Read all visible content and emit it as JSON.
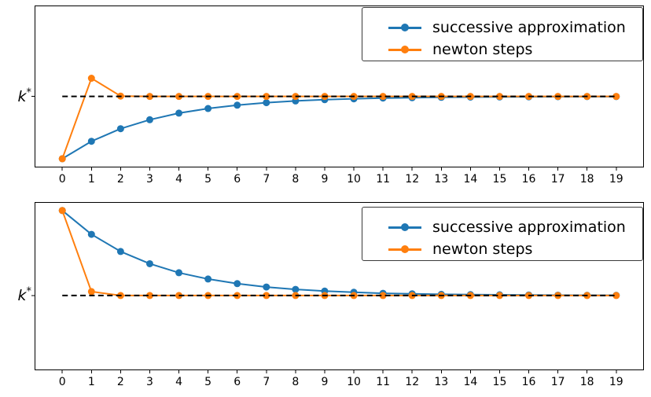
{
  "figure": {
    "background": "#ffffff",
    "title": ""
  },
  "colors": {
    "successive_approximation": "#1f77b4",
    "newton_steps": "#ff7f0e",
    "steady_state_line": "#000000",
    "axis": "#000000"
  },
  "ylabel": {
    "base": "k",
    "sup": "*"
  },
  "legend": {
    "position": "upper right",
    "items": [
      {
        "label": "successive approximation",
        "color": "#1f77b4"
      },
      {
        "label": "newton steps",
        "color": "#ff7f0e"
      }
    ]
  },
  "chart_data": [
    {
      "type": "line",
      "title": "",
      "xlabel": "",
      "ylabel": "k*",
      "x": [
        0,
        1,
        2,
        3,
        4,
        5,
        6,
        7,
        8,
        9,
        10,
        11,
        12,
        13,
        14,
        15,
        16,
        17,
        18,
        19
      ],
      "xticks": [
        0,
        1,
        2,
        3,
        4,
        5,
        6,
        7,
        8,
        9,
        10,
        11,
        12,
        13,
        14,
        15,
        16,
        17,
        18,
        19
      ],
      "ytick_labels": [
        "k*"
      ],
      "xlim": [
        -0.95,
        19.95
      ],
      "ylim": [
        0.43,
        1.73
      ],
      "grid": false,
      "legend_position": "upper right",
      "series": [
        {
          "name": "successive approximation",
          "color": "#1f77b4",
          "marker": "circle",
          "values": [
            0.5,
            0.64,
            0.741,
            0.813,
            0.866,
            0.903,
            0.93,
            0.95,
            0.964,
            0.974,
            0.981,
            0.987,
            0.99,
            0.993,
            0.995,
            0.996,
            0.997,
            0.998,
            0.999,
            0.999
          ]
        },
        {
          "name": "newton steps",
          "color": "#ff7f0e",
          "marker": "circle",
          "values": [
            0.5,
            1.146,
            1.003,
            1.0,
            1.0,
            1.0,
            1.0,
            1.0,
            1.0,
            1.0,
            1.0,
            1.0,
            1.0,
            1.0,
            1.0,
            1.0,
            1.0,
            1.0,
            1.0,
            1.0
          ]
        }
      ],
      "k_star_line": {
        "label": "k*",
        "value": 1.0,
        "style": "dashed",
        "color": "#000000",
        "x_start": 0,
        "x_end": 19
      }
    },
    {
      "type": "line",
      "title": "",
      "xlabel": "",
      "ylabel": "k*",
      "x": [
        0,
        1,
        2,
        3,
        4,
        5,
        6,
        7,
        8,
        9,
        10,
        11,
        12,
        13,
        14,
        15,
        16,
        17,
        18,
        19
      ],
      "xticks": [
        0,
        1,
        2,
        3,
        4,
        5,
        6,
        7,
        8,
        9,
        10,
        11,
        12,
        13,
        14,
        15,
        16,
        17,
        18,
        19
      ],
      "ytick_labels": [
        "k*"
      ],
      "xlim": [
        -0.95,
        19.95
      ],
      "ylim": [
        0.56,
        1.55
      ],
      "grid": false,
      "legend_position": "upper right",
      "series": [
        {
          "name": "successive approximation",
          "color": "#1f77b4",
          "marker": "circle",
          "values": [
            1.5,
            1.36,
            1.259,
            1.187,
            1.134,
            1.097,
            1.07,
            1.05,
            1.036,
            1.026,
            1.019,
            1.013,
            1.01,
            1.007,
            1.005,
            1.004,
            1.003,
            1.002,
            1.001,
            1.001
          ]
        },
        {
          "name": "newton steps",
          "color": "#ff7f0e",
          "marker": "circle",
          "values": [
            1.5,
            1.023,
            1.0,
            1.0,
            1.0,
            1.0,
            1.0,
            1.0,
            1.0,
            1.0,
            1.0,
            1.0,
            1.0,
            1.0,
            1.0,
            1.0,
            1.0,
            1.0,
            1.0,
            1.0
          ]
        }
      ],
      "k_star_line": {
        "label": "k*",
        "value": 1.0,
        "style": "dashed",
        "color": "#000000",
        "x_start": 0,
        "x_end": 19
      }
    }
  ]
}
